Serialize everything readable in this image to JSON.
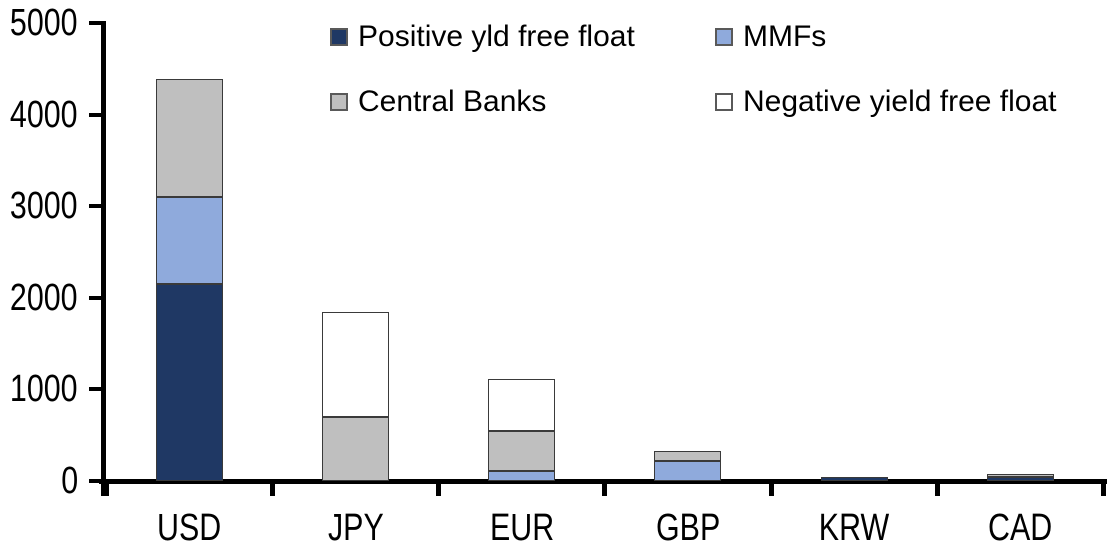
{
  "chart_data": {
    "type": "bar",
    "stacked": true,
    "title": "",
    "xlabel": "",
    "ylabel": "",
    "categories": [
      "USD",
      "JPY",
      "EUR",
      "GBP",
      "KRW",
      "CAD"
    ],
    "series": [
      {
        "name": "Positive yld free float",
        "color": "#1F3864",
        "values": [
          2150,
          0,
          0,
          0,
          45,
          45
        ]
      },
      {
        "name": "MMFs",
        "color": "#8FAADC",
        "values": [
          950,
          0,
          110,
          220,
          0,
          0
        ]
      },
      {
        "name": "Central Banks",
        "color": "#BFBFBF",
        "values": [
          1290,
          700,
          440,
          110,
          0,
          35
        ]
      },
      {
        "name": "Negative yield free float",
        "color": "#FFFFFF",
        "values": [
          0,
          1140,
          560,
          0,
          0,
          0
        ]
      }
    ],
    "ylim": [
      0,
      5000
    ],
    "yticks": [
      0,
      1000,
      2000,
      3000,
      4000,
      5000
    ],
    "grid": false,
    "legend_position": "top",
    "axis_color": "#000000"
  }
}
